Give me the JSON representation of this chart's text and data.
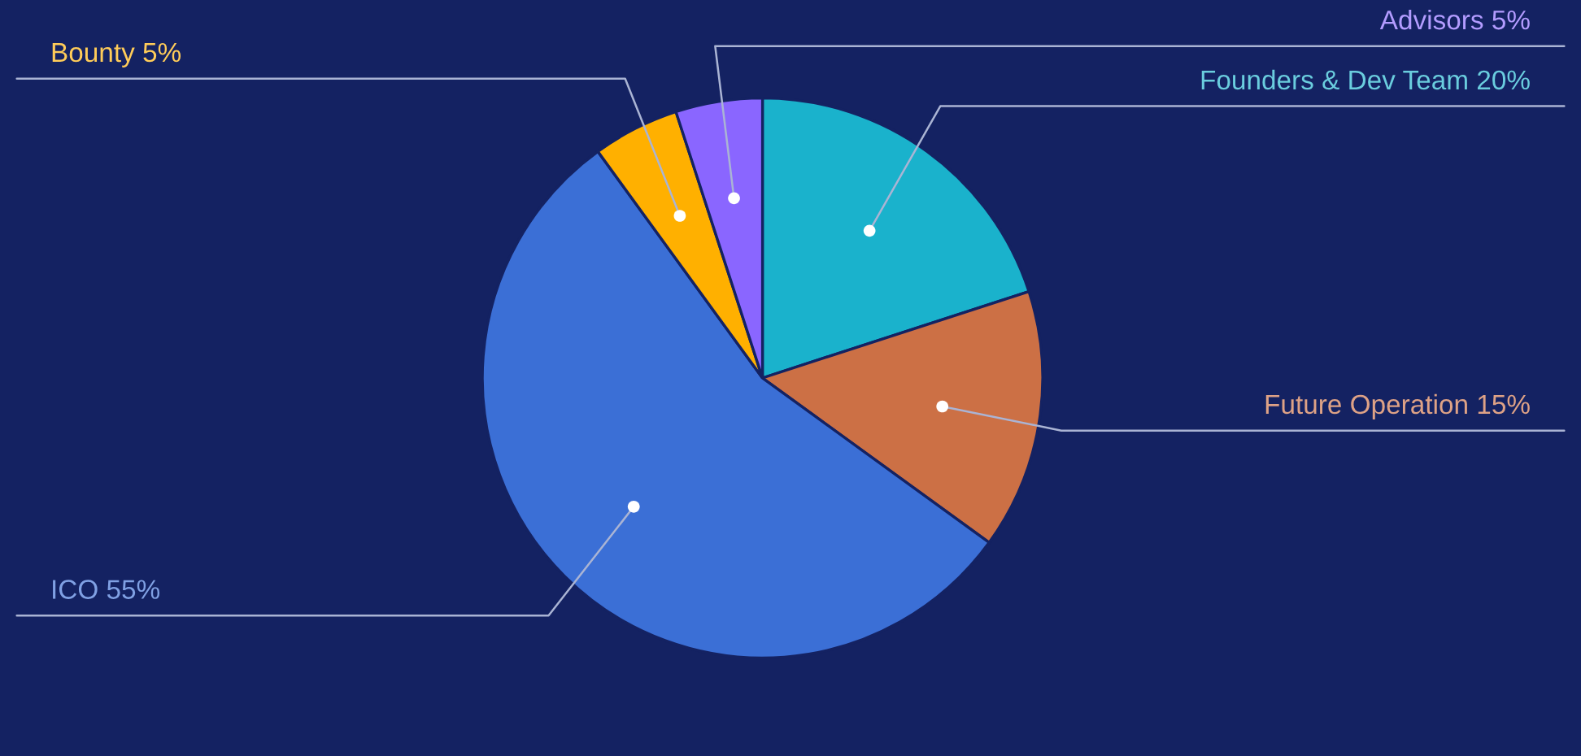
{
  "chart_data": {
    "type": "pie",
    "categories": [
      "Founders & Dev Team",
      "Future Operation",
      "ICO",
      "Bounty",
      "Advisors"
    ],
    "values": [
      20,
      15,
      55,
      5,
      5
    ],
    "value_labels": [
      "20%",
      "15%",
      "55%",
      "5%",
      "5%"
    ],
    "colors": [
      "#1ab2cc",
      "#cc7045",
      "#3b6fd6",
      "#ffb000",
      "#8a66ff"
    ],
    "legend": false
  }
}
